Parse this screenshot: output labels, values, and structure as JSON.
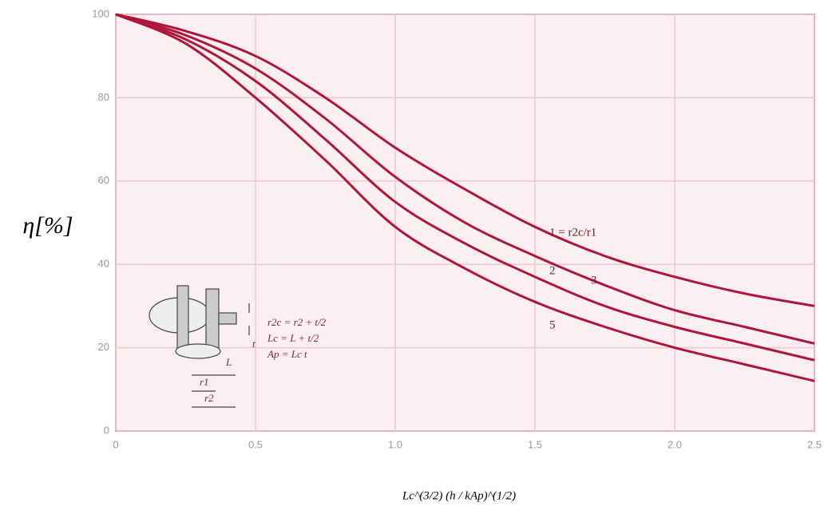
{
  "chart_data": {
    "type": "line",
    "ylabel": "η[%]",
    "xlabel": "Lc^(3/2) (h / kAp)^(1/2)",
    "x": [
      0,
      0.25,
      0.5,
      0.75,
      1.0,
      1.25,
      1.5,
      1.75,
      2.0,
      2.25,
      2.5
    ],
    "series": [
      {
        "name": "1 = r2c/r1",
        "color": "#b0163a",
        "values": [
          100,
          96,
          90,
          80,
          68,
          58,
          49,
          42,
          37,
          33,
          30
        ]
      },
      {
        "name": "2",
        "color": "#b0163a",
        "values": [
          100,
          95,
          87,
          75,
          61,
          50,
          42,
          35,
          29,
          25,
          21
        ]
      },
      {
        "name": "3",
        "color": "#b0163a",
        "values": [
          100,
          94,
          84,
          70,
          55,
          45,
          37,
          30,
          25,
          21,
          17
        ]
      },
      {
        "name": "5",
        "color": "#b0163a",
        "values": [
          100,
          93,
          80,
          65,
          49,
          39,
          31,
          25,
          20,
          16,
          12
        ]
      }
    ],
    "xlim": [
      0,
      2.5
    ],
    "ylim": [
      0,
      100
    ],
    "xticks": [
      0,
      0.5,
      {
        "value": 1,
        "label": "1.0"
      },
      1.5,
      {
        "value": 2,
        "label": "2.0"
      },
      2.5
    ],
    "yticks": [
      0,
      20,
      40,
      60,
      80,
      100
    ],
    "grid": true,
    "annotations": [
      "r2c = r2 + t/2",
      "Lc = L + t/2",
      "Ap = Lc t",
      "L",
      "r1",
      "r2",
      "t"
    ]
  }
}
